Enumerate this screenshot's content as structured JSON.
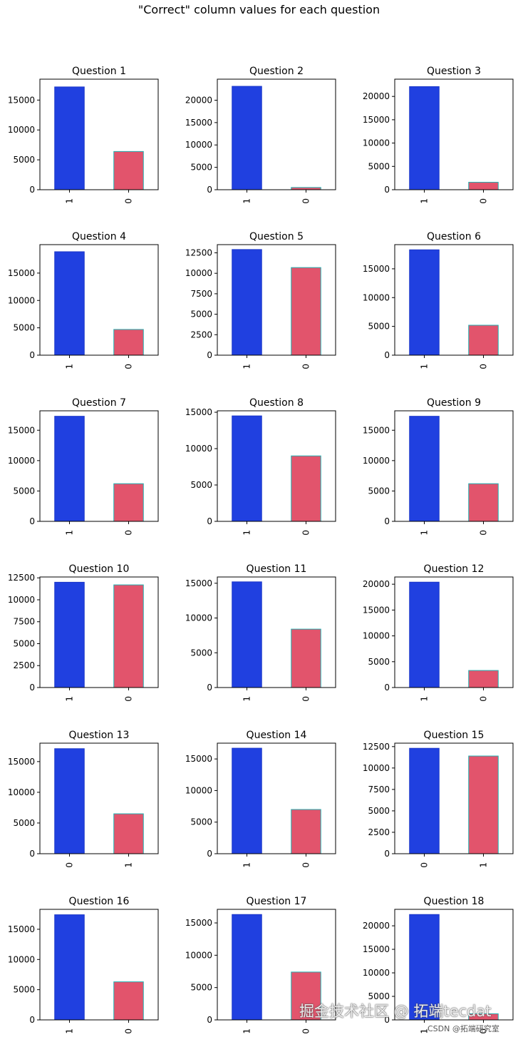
{
  "figure": {
    "title": "\"Correct\" column values for each question",
    "watermark": "掘金技术社区 @ 拓端tecdat",
    "credit": "CSDN @拓端研究室"
  },
  "colors": {
    "bar_first": "#2040e0",
    "bar_second": "#e2546c",
    "bar_edge_second": "#20b0b0",
    "axis": "#000000"
  },
  "chart_data": [
    {
      "type": "bar",
      "title": "Question 1",
      "categories": [
        "1",
        "0"
      ],
      "values": [
        17200,
        6400
      ],
      "ylim": [
        0,
        18500
      ],
      "yticks": [
        0,
        5000,
        10000,
        15000
      ],
      "xlabel": "",
      "ylabel": ""
    },
    {
      "type": "bar",
      "title": "Question 2",
      "categories": [
        "1",
        "0"
      ],
      "values": [
        23100,
        500
      ],
      "ylim": [
        0,
        24700
      ],
      "yticks": [
        0,
        5000,
        10000,
        15000,
        20000
      ],
      "xlabel": "",
      "ylabel": ""
    },
    {
      "type": "bar",
      "title": "Question 3",
      "categories": [
        "1",
        "0"
      ],
      "values": [
        22100,
        1600
      ],
      "ylim": [
        0,
        23700
      ],
      "yticks": [
        0,
        5000,
        10000,
        15000,
        20000
      ],
      "xlabel": "",
      "ylabel": ""
    },
    {
      "type": "bar",
      "title": "Question 4",
      "categories": [
        "1",
        "0"
      ],
      "values": [
        18900,
        4700
      ],
      "ylim": [
        0,
        20200
      ],
      "yticks": [
        0,
        5000,
        10000,
        15000
      ],
      "xlabel": "",
      "ylabel": ""
    },
    {
      "type": "bar",
      "title": "Question 5",
      "categories": [
        "1",
        "0"
      ],
      "values": [
        12900,
        10700
      ],
      "ylim": [
        0,
        13500
      ],
      "yticks": [
        0,
        2500,
        5000,
        7500,
        10000,
        12500
      ],
      "xlabel": "",
      "ylabel": ""
    },
    {
      "type": "bar",
      "title": "Question 6",
      "categories": [
        "1",
        "0"
      ],
      "values": [
        18300,
        5200
      ],
      "ylim": [
        0,
        19200
      ],
      "yticks": [
        0,
        5000,
        10000,
        15000
      ],
      "xlabel": "",
      "ylabel": ""
    },
    {
      "type": "bar",
      "title": "Question 7",
      "categories": [
        "1",
        "0"
      ],
      "values": [
        17300,
        6200
      ],
      "ylim": [
        0,
        18200
      ],
      "yticks": [
        0,
        5000,
        10000,
        15000
      ],
      "xlabel": "",
      "ylabel": ""
    },
    {
      "type": "bar",
      "title": "Question 8",
      "categories": [
        "1",
        "0"
      ],
      "values": [
        14500,
        9000
      ],
      "ylim": [
        0,
        15200
      ],
      "yticks": [
        0,
        5000,
        10000,
        15000
      ],
      "xlabel": "",
      "ylabel": ""
    },
    {
      "type": "bar",
      "title": "Question 9",
      "categories": [
        "1",
        "0"
      ],
      "values": [
        17300,
        6200
      ],
      "ylim": [
        0,
        18200
      ],
      "yticks": [
        0,
        5000,
        10000,
        15000
      ],
      "xlabel": "",
      "ylabel": ""
    },
    {
      "type": "bar",
      "title": "Question 10",
      "categories": [
        "1",
        "0"
      ],
      "values": [
        12000,
        11700
      ],
      "ylim": [
        0,
        12600
      ],
      "yticks": [
        0,
        2500,
        5000,
        7500,
        10000,
        12500
      ],
      "xlabel": "",
      "ylabel": ""
    },
    {
      "type": "bar",
      "title": "Question 11",
      "categories": [
        "1",
        "0"
      ],
      "values": [
        15200,
        8400
      ],
      "ylim": [
        0,
        15900
      ],
      "yticks": [
        0,
        5000,
        10000,
        15000
      ],
      "xlabel": "",
      "ylabel": ""
    },
    {
      "type": "bar",
      "title": "Question 12",
      "categories": [
        "1",
        "0"
      ],
      "values": [
        20400,
        3300
      ],
      "ylim": [
        0,
        21400
      ],
      "yticks": [
        0,
        5000,
        10000,
        15000,
        20000
      ],
      "xlabel": "",
      "ylabel": ""
    },
    {
      "type": "bar",
      "title": "Question 13",
      "categories": [
        "0",
        "1"
      ],
      "values": [
        17100,
        6500
      ],
      "ylim": [
        0,
        18000
      ],
      "yticks": [
        0,
        5000,
        10000,
        15000
      ],
      "xlabel": "",
      "ylabel": ""
    },
    {
      "type": "bar",
      "title": "Question 14",
      "categories": [
        "1",
        "0"
      ],
      "values": [
        16700,
        7000
      ],
      "ylim": [
        0,
        17500
      ],
      "yticks": [
        0,
        5000,
        10000,
        15000
      ],
      "xlabel": "",
      "ylabel": ""
    },
    {
      "type": "bar",
      "title": "Question 15",
      "categories": [
        "0",
        "1"
      ],
      "values": [
        12300,
        11400
      ],
      "ylim": [
        0,
        12900
      ],
      "yticks": [
        0,
        2500,
        5000,
        7500,
        10000,
        12500
      ],
      "xlabel": "",
      "ylabel": ""
    },
    {
      "type": "bar",
      "title": "Question 16",
      "categories": [
        "1",
        "0"
      ],
      "values": [
        17400,
        6300
      ],
      "ylim": [
        0,
        18300
      ],
      "yticks": [
        0,
        5000,
        10000,
        15000
      ],
      "xlabel": "",
      "ylabel": ""
    },
    {
      "type": "bar",
      "title": "Question 17",
      "categories": [
        "1",
        "0"
      ],
      "values": [
        16300,
        7400
      ],
      "ylim": [
        0,
        17100
      ],
      "yticks": [
        0,
        5000,
        10000,
        15000
      ],
      "xlabel": "",
      "ylabel": ""
    },
    {
      "type": "bar",
      "title": "Question 18",
      "categories": [
        "1",
        "0"
      ],
      "values": [
        22400,
        1300
      ],
      "ylim": [
        0,
        23500
      ],
      "yticks": [
        0,
        5000,
        10000,
        15000,
        20000
      ],
      "xlabel": "",
      "ylabel": ""
    }
  ]
}
